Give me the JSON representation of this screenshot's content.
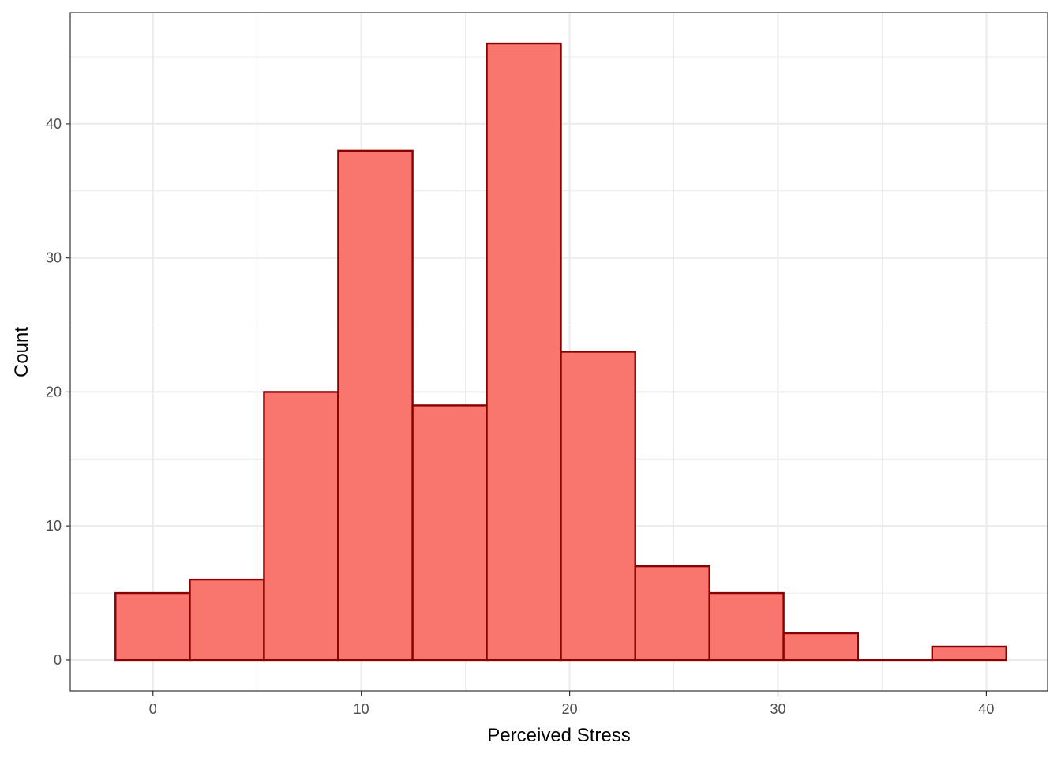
{
  "chart_data": {
    "type": "bar",
    "subtype": "histogram",
    "title": "",
    "xlabel": "Perceived Stress",
    "ylabel": "Count",
    "xlim": [
      -3.97,
      42.94
    ],
    "ylim": [
      -2.3,
      48.3
    ],
    "x_ticks": [
      0,
      10,
      20,
      30,
      40
    ],
    "x_tick_labels": [
      "0",
      "10",
      "20",
      "30",
      "40"
    ],
    "y_ticks": [
      0,
      10,
      20,
      30,
      40
    ],
    "y_tick_labels": [
      "0",
      "10",
      "20",
      "30",
      "40"
    ],
    "bin_edges": [
      -1.8,
      1.77,
      5.33,
      8.89,
      12.46,
      16.02,
      19.58,
      23.15,
      26.71,
      30.27,
      33.84,
      37.4,
      40.96
    ],
    "values": [
      5,
      6,
      20,
      38,
      19,
      46,
      23,
      7,
      5,
      2,
      0,
      1
    ],
    "grid": true,
    "legend": "none",
    "fill_color": "#F8766D",
    "border_color": "#8B0000",
    "grid_color": "#EBEBEB",
    "panel_border_color": "#333333"
  }
}
